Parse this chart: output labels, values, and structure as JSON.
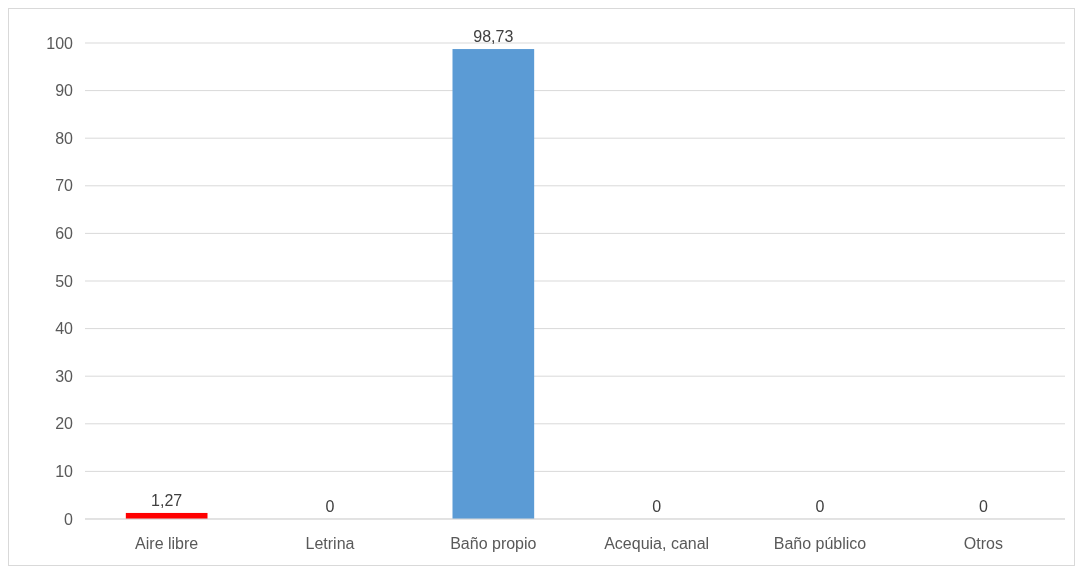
{
  "chart_data": {
    "type": "bar",
    "categories": [
      "Aire libre",
      "Letrina",
      "Baño propio",
      "Acequia, canal",
      "Baño público",
      "Otros"
    ],
    "values": [
      1.27,
      0,
      98.73,
      0,
      0,
      0
    ],
    "colors": [
      "#ff0000",
      "#5b9bd5",
      "#5b9bd5",
      "#5b9bd5",
      "#5b9bd5",
      "#5b9bd5"
    ],
    "value_labels": [
      "1,27",
      "0",
      "98,73",
      "0",
      "0",
      "0"
    ],
    "ylim": [
      0,
      100
    ],
    "yticks": [
      0,
      10,
      20,
      30,
      40,
      50,
      60,
      70,
      80,
      90,
      100
    ],
    "grid": "y"
  }
}
